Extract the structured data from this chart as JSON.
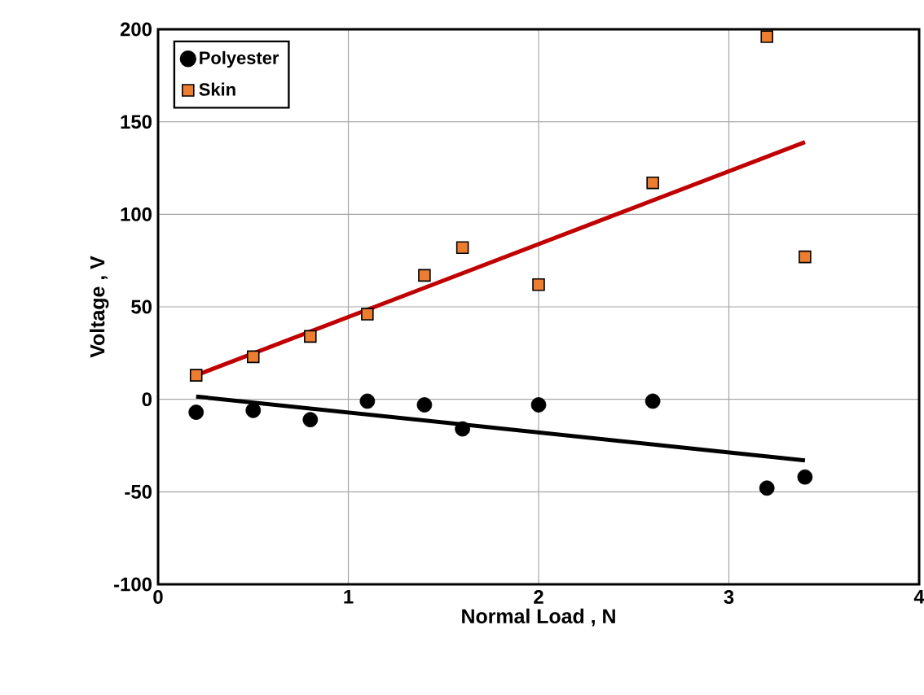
{
  "chart_data": {
    "type": "scatter",
    "xlabel": "Normal Load , N",
    "ylabel": "Voltage , V",
    "xlim": [
      0,
      4
    ],
    "xticks": [
      0,
      1,
      2,
      3,
      4
    ],
    "ylim": [
      -100,
      200
    ],
    "yticks": [
      -100,
      -50,
      0,
      50,
      100,
      150,
      200
    ],
    "grid": true,
    "legend": "top left",
    "series": [
      {
        "name": "Polyester",
        "color": "#000000",
        "marker": "circle",
        "x": [
          0.2,
          0.5,
          0.8,
          1.1,
          1.4,
          1.6,
          2.0,
          2.6,
          3.2,
          3.4
        ],
        "values": [
          -7,
          -6,
          -11,
          -1,
          -3,
          -16,
          -3,
          -1,
          -48,
          -42
        ]
      },
      {
        "name": "Skin",
        "color": "#ed7d31",
        "marker": "square",
        "x": [
          0.2,
          0.5,
          0.8,
          1.1,
          1.4,
          1.6,
          2.0,
          2.6,
          3.2,
          3.4
        ],
        "values": [
          13,
          23,
          34,
          46,
          67,
          82,
          62,
          117,
          196,
          77
        ]
      },
      {
        "type": "line",
        "color": "#000000",
        "marker": "none",
        "x": [
          0.2,
          3.4
        ],
        "values": [
          1.5,
          -33
        ]
      },
      {
        "type": "line",
        "color": "#c00000",
        "marker": "none",
        "x": [
          0.2,
          3.4
        ],
        "values": [
          13,
          139
        ]
      }
    ]
  }
}
